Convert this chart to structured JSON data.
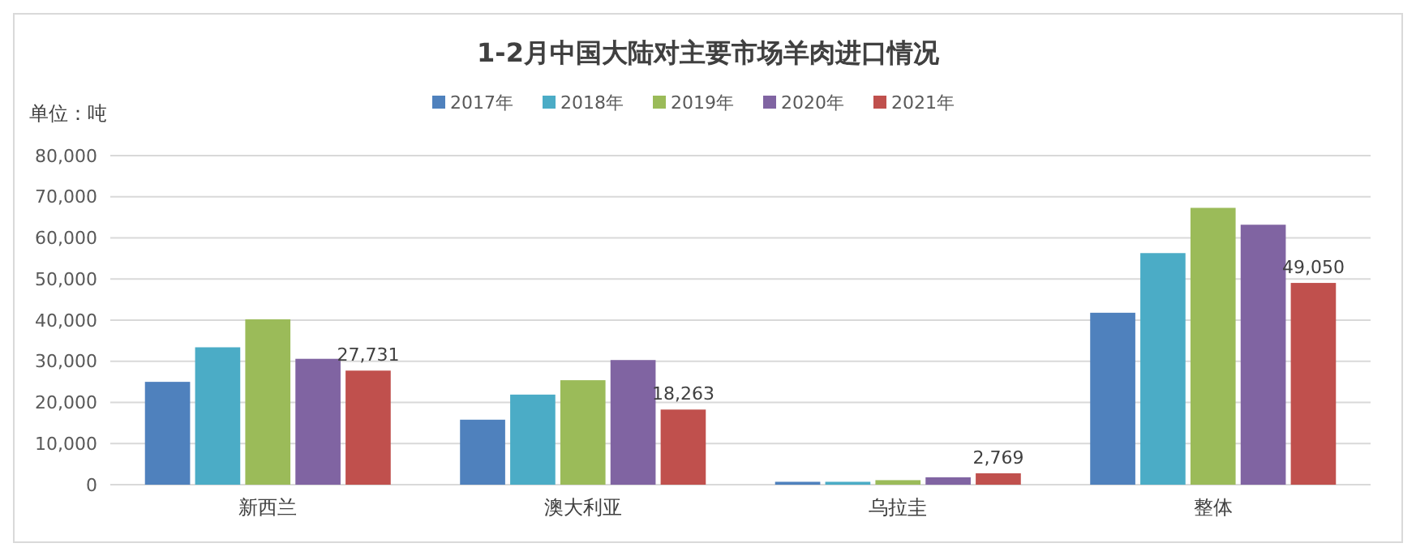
{
  "chart_data": {
    "type": "bar",
    "title": "1-2月中国大陆对主要市场羊肉进口情况",
    "ylabel": "单位：吨",
    "categories": [
      "新西兰",
      "澳大利亚",
      "乌拉圭",
      "整体"
    ],
    "series": [
      {
        "name": "2017年",
        "color": "#4f81bd",
        "values": [
          25000,
          15800,
          700,
          41800
        ]
      },
      {
        "name": "2018年",
        "color": "#4bacc6",
        "values": [
          33400,
          21900,
          700,
          56300
        ]
      },
      {
        "name": "2019年",
        "color": "#9bbb59",
        "values": [
          40200,
          25400,
          1100,
          67300
        ]
      },
      {
        "name": "2020年",
        "color": "#8064a2",
        "values": [
          30600,
          30300,
          1800,
          63200
        ]
      },
      {
        "name": "2021年",
        "color": "#c0504d",
        "values": [
          27731,
          18263,
          2769,
          49050
        ],
        "value_labels": [
          "27,731",
          "18,263",
          "2,769",
          "49,050"
        ]
      }
    ],
    "ylim": [
      0,
      80000
    ],
    "yticks": [
      {
        "value": 0,
        "label": "0"
      },
      {
        "value": 10000,
        "label": "10,000"
      },
      {
        "value": 20000,
        "label": "20,000"
      },
      {
        "value": 30000,
        "label": "30,000"
      },
      {
        "value": 40000,
        "label": "40,000"
      },
      {
        "value": 50000,
        "label": "50,000"
      },
      {
        "value": 60000,
        "label": "60,000"
      },
      {
        "value": 70000,
        "label": "70,000"
      },
      {
        "value": 80000,
        "label": "80,000"
      }
    ],
    "grid": "y",
    "legend": "top"
  }
}
